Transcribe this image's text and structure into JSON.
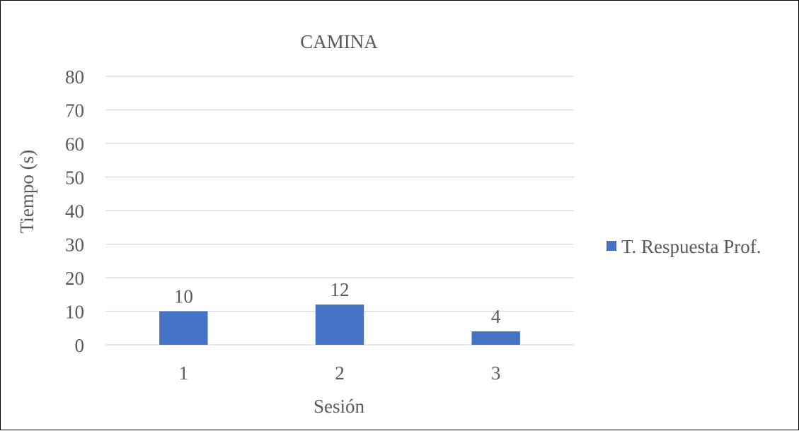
{
  "chart_data": {
    "type": "bar",
    "title": "CAMINA",
    "xlabel": "Sesión",
    "ylabel": "Tiempo (s)",
    "categories": [
      "1",
      "2",
      "3"
    ],
    "series": [
      {
        "name": "T. Respuesta Prof.",
        "values": [
          10,
          12,
          4
        ],
        "color": "#4472c4"
      }
    ],
    "ylim": [
      0,
      80
    ],
    "yticks": [
      0,
      10,
      20,
      30,
      40,
      50,
      60,
      70,
      80
    ],
    "grid": true,
    "legend": "right",
    "data_labels": [
      "10",
      "12",
      "4"
    ]
  }
}
